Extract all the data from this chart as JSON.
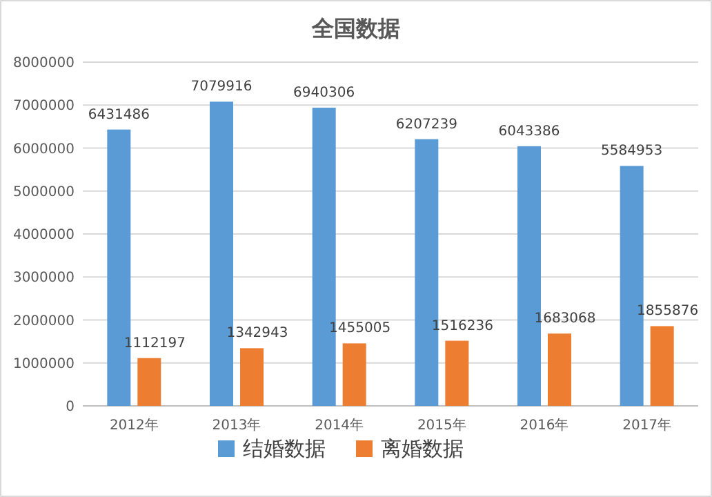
{
  "chart_data": {
    "type": "bar",
    "title": "全国数据",
    "categories": [
      "2012年",
      "2013年",
      "2014年",
      "2015年",
      "2016年",
      "2017年"
    ],
    "series": [
      {
        "name": "结婚数据",
        "color": "#5b9bd5",
        "values": [
          6431486,
          7079916,
          6940306,
          6207239,
          6043386,
          5584953
        ]
      },
      {
        "name": "离婚数据",
        "color": "#ed7d31",
        "values": [
          1112197,
          1342943,
          1455005,
          1516236,
          1683068,
          1855876
        ]
      }
    ],
    "ylim": [
      0,
      8000000
    ],
    "yticks": [
      0,
      1000000,
      2000000,
      3000000,
      4000000,
      5000000,
      6000000,
      7000000,
      8000000
    ],
    "grid": "y",
    "legend": "bottom",
    "data_labels": true
  }
}
